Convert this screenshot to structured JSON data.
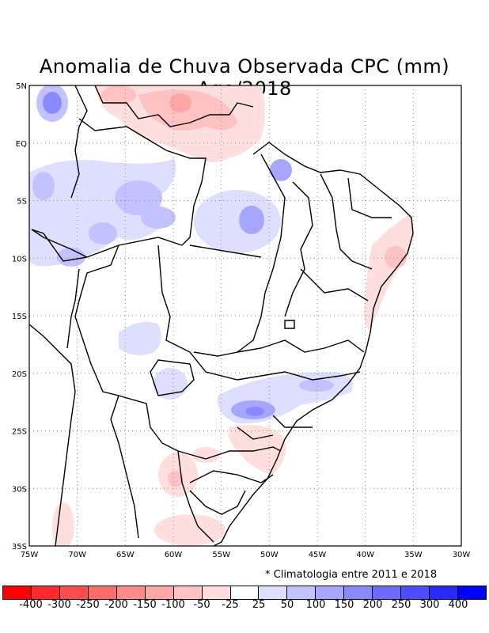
{
  "title": "Anomalia de Chuva Observada CPC (mm) Ago/2018",
  "note": "* Climatologia entre 2011 e 2018",
  "map": {
    "lat_labels": [
      "5N",
      "EQ",
      "5S",
      "10S",
      "15S",
      "20S",
      "25S",
      "30S",
      "35S"
    ],
    "lon_labels": [
      "75W",
      "70W",
      "65W",
      "60W",
      "55W",
      "50W",
      "45W",
      "40W",
      "35W",
      "30W"
    ],
    "lat_range": [
      5,
      -35
    ],
    "lon_range": [
      -75,
      -30
    ],
    "grid": "dotted"
  },
  "legend": {
    "labels": [
      "-400",
      "-300",
      "-250",
      "-200",
      "-150",
      "-100",
      "-50",
      "-25",
      "25",
      "50",
      "100",
      "150",
      "200",
      "250",
      "300",
      "400"
    ],
    "colors": [
      "#ff0000",
      "#ff2a2a",
      "#ff4d4d",
      "#ff6b6b",
      "#ff8a8a",
      "#ffa6a6",
      "#ffc2c2",
      "#ffdede",
      "#ffffff",
      "#dedeff",
      "#c2c2ff",
      "#a6a6ff",
      "#8a8aff",
      "#6b6bff",
      "#4d4dff",
      "#2a2aff",
      "#0000ff"
    ]
  }
}
